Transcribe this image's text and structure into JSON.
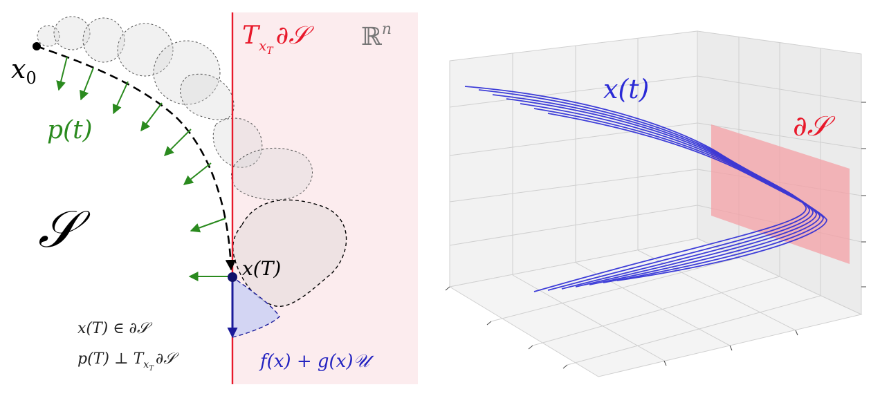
{
  "left_panel": {
    "tangent_label_base": "T",
    "tangent_label_sub": "x",
    "tangent_label_subsub": "T",
    "tangent_label_tail": "∂𝒮",
    "space_label_base": "ℝ",
    "space_label_sup": "n",
    "x0_label_base": "x",
    "x0_label_sub": "0",
    "costate_label": "p(t)",
    "set_label": "𝒮",
    "xT_label": "x(T)",
    "cond1": "x(T) ∈ ∂𝒮",
    "cond2_main": "p(T) ⊥ T",
    "cond2_sub": "x",
    "cond2_subsub": "T",
    "cond2_tail": "∂𝒮",
    "dynamics_label": "f(x) + g(x)𝒰"
  },
  "right_panel": {
    "trajectory_label": "x(t)",
    "boundary_label": "∂𝒮"
  },
  "colors": {
    "tangent_line": "#e8182a",
    "region_fill": "#fcecee",
    "costate_arrows": "#2a8a1e",
    "trajectory": "#2b2bd6",
    "boundary_plane": "#f4a0a6",
    "dynamics": "#2323c0"
  }
}
